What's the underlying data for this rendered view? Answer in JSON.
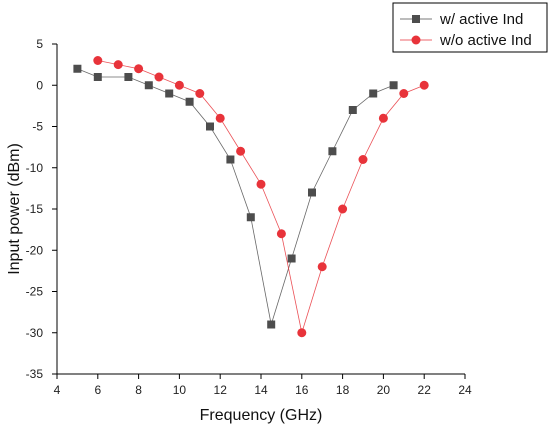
{
  "chart_data": {
    "type": "line",
    "xlabel": "Frequency (GHz)",
    "ylabel": "Input power (dBm)",
    "xlim": [
      4,
      24
    ],
    "ylim": [
      -35,
      5
    ],
    "xticks": [
      4,
      6,
      8,
      10,
      12,
      14,
      16,
      18,
      20,
      22,
      24
    ],
    "yticks": [
      5,
      0,
      -5,
      -10,
      -15,
      -20,
      -25,
      -30,
      -35
    ],
    "grid": false,
    "legend_position": "top-right",
    "series": [
      {
        "name": "w/ active Ind",
        "color": "#4d4d4d",
        "marker": "square",
        "x": [
          5,
          6,
          7.5,
          8.5,
          9.5,
          10.5,
          11.5,
          12.5,
          13.5,
          14.5,
          15.5,
          16.5,
          17.5,
          18.5,
          19.5,
          20.5
        ],
        "y": [
          2,
          1,
          1,
          0,
          -1,
          -2,
          -5,
          -9,
          -16,
          -29,
          -21,
          -13,
          -8,
          -3,
          -1,
          0
        ]
      },
      {
        "name": "w/o active Ind",
        "color": "#e8333a",
        "marker": "circle",
        "x": [
          6,
          7,
          8,
          9,
          10,
          11,
          12,
          13,
          14,
          15,
          16,
          17,
          18,
          19,
          20,
          21,
          22
        ],
        "y": [
          3,
          2.5,
          2,
          1,
          0,
          -1,
          -4,
          -8,
          -12,
          -18,
          -30,
          -22,
          -15,
          -9,
          -4,
          -1,
          0
        ]
      }
    ]
  }
}
